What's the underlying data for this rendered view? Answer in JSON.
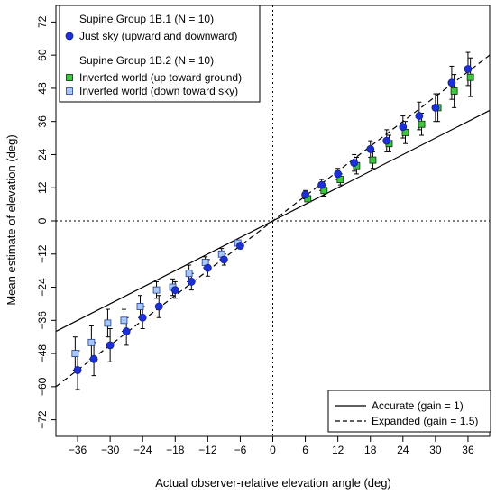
{
  "chart_data": {
    "type": "scatter",
    "xlabel": "Actual observer-relative elevation angle (deg)",
    "ylabel": "Mean estimate of elevation (deg)",
    "xlim": [
      -40,
      40
    ],
    "ylim": [
      -78,
      78
    ],
    "xticks": [
      -36,
      -30,
      -24,
      -18,
      -12,
      -6,
      0,
      6,
      12,
      18,
      24,
      30,
      36
    ],
    "yticks": [
      -72,
      -60,
      -48,
      -36,
      -24,
      -12,
      0,
      12,
      24,
      36,
      48,
      60,
      72
    ],
    "xtick_labels": [
      "−36",
      "−30",
      "−24",
      "−18",
      "−12",
      "−6",
      "0",
      "6",
      "12",
      "18",
      "24",
      "30",
      "36"
    ],
    "ytick_labels": [
      "−72",
      "−60",
      "−48",
      "−36",
      "−24",
      "−12",
      "0",
      "12",
      "24",
      "36",
      "48",
      "60",
      "72"
    ],
    "grid": false,
    "reference_lines": [
      {
        "name": "Accurate (gain = 1)",
        "slope": 1,
        "style": "solid"
      },
      {
        "name": "Expanded (gain = 1.5)",
        "slope": 1.5,
        "style": "dashed"
      }
    ],
    "zero_lines": {
      "x": 0,
      "y": 0,
      "style": "dotted"
    },
    "legend_top_left": {
      "group1_title": "Supine Group 1B.1 (N = 10)",
      "group2_title": "Supine Group 1B.2 (N = 10)"
    },
    "series": [
      {
        "name": "Just sky (upward and downward)",
        "marker": "circle",
        "color": "#1d2fd6",
        "points": [
          {
            "x": -36,
            "y": -54,
            "err": 7
          },
          {
            "x": -33,
            "y": -50,
            "err": 6
          },
          {
            "x": -30,
            "y": -45,
            "err": 6
          },
          {
            "x": -27,
            "y": -40,
            "err": 5
          },
          {
            "x": -24,
            "y": -35,
            "err": 4
          },
          {
            "x": -21,
            "y": -31,
            "err": 4
          },
          {
            "x": -18,
            "y": -25,
            "err": 3
          },
          {
            "x": -15,
            "y": -22,
            "err": 3
          },
          {
            "x": -12,
            "y": -17,
            "err": 3
          },
          {
            "x": -9,
            "y": -14,
            "err": 2
          },
          {
            "x": -6,
            "y": -9,
            "err": 1
          },
          {
            "x": 6,
            "y": 9.5,
            "err": 1.5
          },
          {
            "x": 9,
            "y": 13,
            "err": 2
          },
          {
            "x": 12,
            "y": 17,
            "err": 2
          },
          {
            "x": 15,
            "y": 21,
            "err": 3
          },
          {
            "x": 18,
            "y": 26,
            "err": 3
          },
          {
            "x": 21,
            "y": 29,
            "err": 4
          },
          {
            "x": 24,
            "y": 34,
            "err": 4
          },
          {
            "x": 27,
            "y": 38,
            "err": 5
          },
          {
            "x": 30,
            "y": 41,
            "err": 5
          },
          {
            "x": 33,
            "y": 50,
            "err": 6
          },
          {
            "x": 36,
            "y": 55,
            "err": 6
          }
        ]
      },
      {
        "name": "Inverted world (up toward ground)",
        "marker": "square",
        "color": "#3cc83c",
        "points": [
          {
            "x": 6,
            "y": 8,
            "err": 1
          },
          {
            "x": 9,
            "y": 11,
            "err": 2
          },
          {
            "x": 12,
            "y": 15,
            "err": 2
          },
          {
            "x": 15,
            "y": 20,
            "err": 3
          },
          {
            "x": 18,
            "y": 22,
            "err": 3
          },
          {
            "x": 21,
            "y": 28,
            "err": 3
          },
          {
            "x": 24,
            "y": 32,
            "err": 4
          },
          {
            "x": 27,
            "y": 35,
            "err": 4
          },
          {
            "x": 30,
            "y": 41,
            "err": 5
          },
          {
            "x": 33,
            "y": 47,
            "err": 6
          },
          {
            "x": 36,
            "y": 52,
            "err": 7
          }
        ]
      },
      {
        "name": "Inverted world (down toward sky)",
        "marker": "square",
        "color": "#a9c6f5",
        "points": [
          {
            "x": -36,
            "y": -48,
            "err": 6
          },
          {
            "x": -33,
            "y": -44,
            "err": 6
          },
          {
            "x": -30,
            "y": -37,
            "err": 5
          },
          {
            "x": -27,
            "y": -36,
            "err": 4
          },
          {
            "x": -24,
            "y": -31,
            "err": 4
          },
          {
            "x": -21,
            "y": -25,
            "err": 3
          },
          {
            "x": -18,
            "y": -24,
            "err": 3
          },
          {
            "x": -15,
            "y": -19,
            "err": 3
          },
          {
            "x": -12,
            "y": -15,
            "err": 2
          },
          {
            "x": -9,
            "y": -12,
            "err": 2
          },
          {
            "x": -6,
            "y": -8,
            "err": 1
          }
        ]
      }
    ]
  }
}
